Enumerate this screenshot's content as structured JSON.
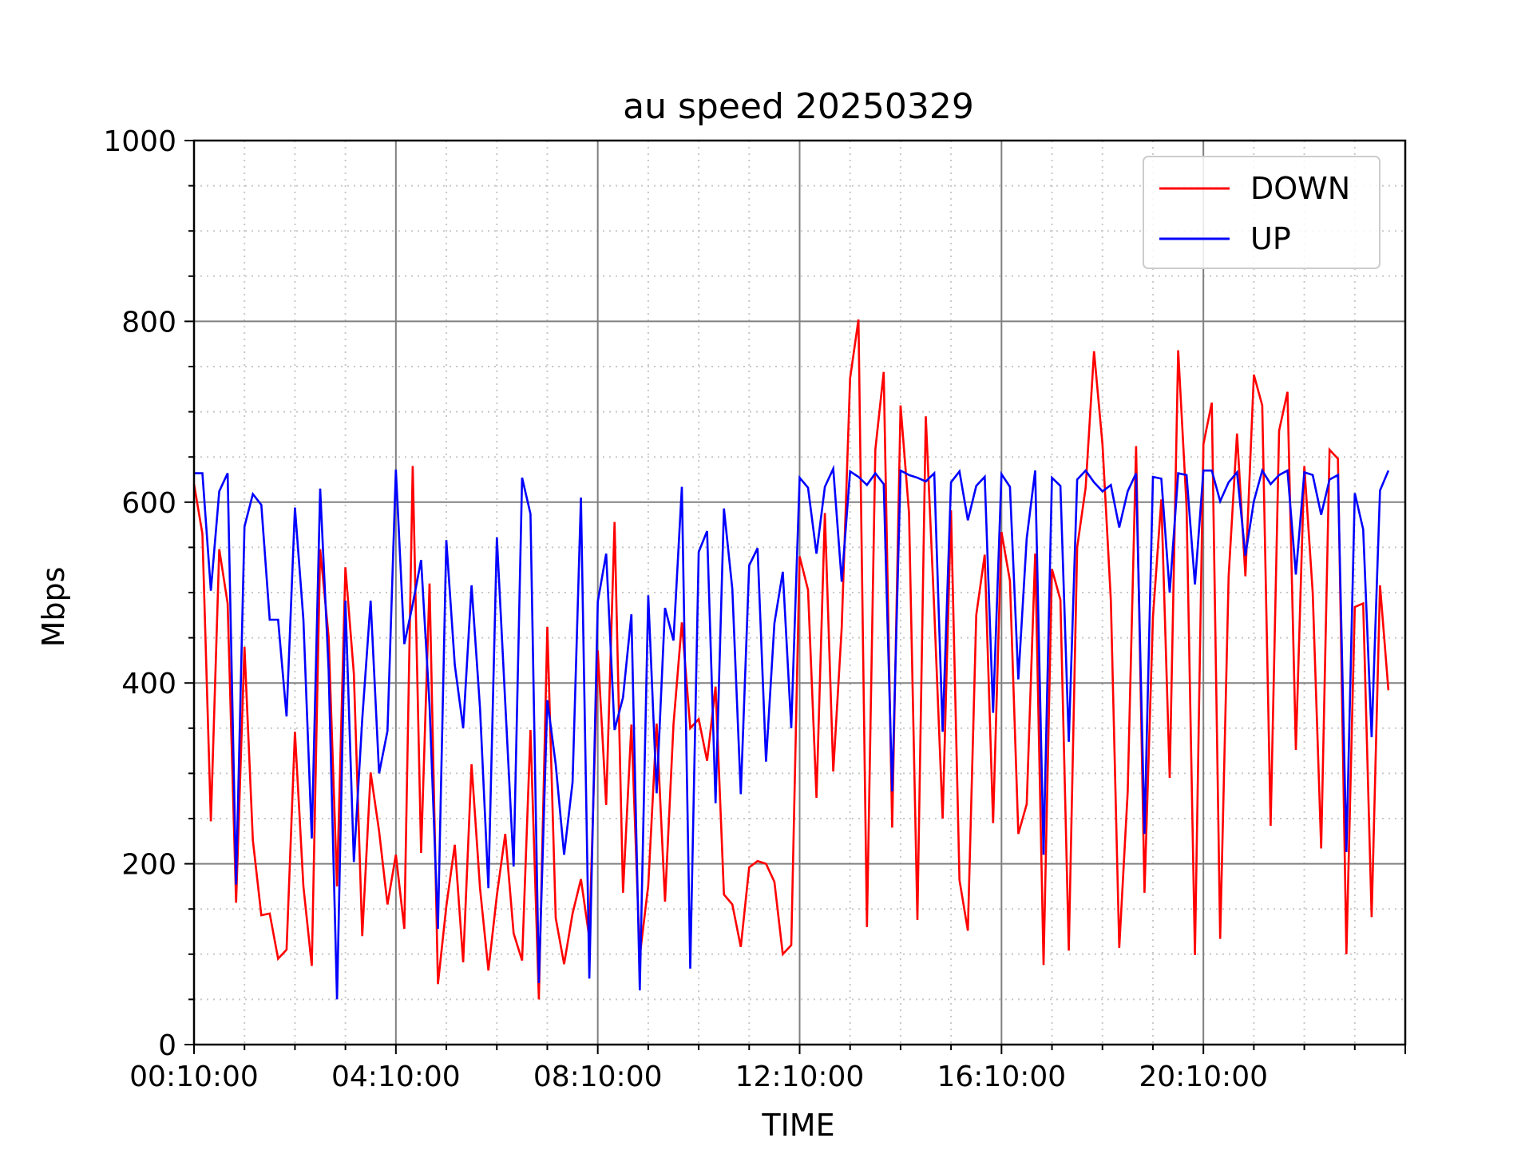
{
  "chart_data": {
    "type": "line",
    "title": "au speed 20250329",
    "xlabel": "TIME",
    "ylabel": "Mbps",
    "ylim": [
      0,
      1000
    ],
    "yticks": [
      0,
      200,
      400,
      600,
      800,
      1000
    ],
    "x_start": "00:10:00",
    "x_interval_minutes": 10,
    "x_tick_labels": [
      "00:10:00",
      "04:10:00",
      "08:10:00",
      "12:10:00",
      "16:10:00",
      "20:10:00"
    ],
    "grid": true,
    "legend_position": "top-right",
    "series": [
      {
        "name": "DOWN",
        "color": "#ff0000",
        "values": [
          620,
          565,
          247,
          548,
          488,
          157,
          440,
          226,
          143,
          145,
          95,
          105,
          346,
          175,
          87,
          548,
          451,
          175,
          528,
          410,
          120,
          301,
          236,
          155,
          210,
          128,
          640,
          212,
          510,
          67,
          153,
          221,
          91,
          310,
          173,
          82,
          165,
          233,
          123,
          93,
          348,
          50,
          462,
          140,
          89,
          145,
          183,
          118,
          436,
          265,
          578,
          168,
          354,
          98,
          176,
          355,
          158,
          354,
          467,
          350,
          360,
          314,
          396,
          166,
          155,
          108,
          196,
          203,
          200,
          180,
          100,
          110,
          540,
          503,
          273,
          588,
          302,
          461,
          737,
          802,
          130,
          658,
          744,
          240,
          707,
          588,
          138,
          695,
          481,
          250,
          591,
          182,
          126,
          475,
          542,
          245,
          567,
          513,
          233,
          266,
          543,
          88,
          526,
          492,
          104,
          550,
          616,
          767,
          664,
          491,
          107,
          280,
          662,
          168,
          473,
          603,
          295,
          768,
          595,
          99,
          664,
          710,
          117,
          518,
          676,
          518,
          741,
          707,
          242,
          679,
          722,
          326,
          640,
          500,
          217,
          658,
          648,
          100,
          484,
          488,
          141,
          508,
          392
        ],
        "stroke_width": 2.6
      },
      {
        "name": "UP",
        "color": "#0000ff",
        "values": [
          632,
          632,
          502,
          612,
          632,
          177,
          573,
          609,
          597,
          470,
          470,
          363,
          594,
          470,
          228,
          615,
          414,
          50,
          491,
          202,
          360,
          491,
          300,
          347,
          636,
          443,
          487,
          536,
          375,
          128,
          558,
          420,
          350,
          508,
          372,
          173,
          561,
          378,
          197,
          627,
          587,
          68,
          381,
          310,
          210,
          290,
          605,
          73,
          490,
          543,
          348,
          384,
          476,
          60,
          497,
          278,
          483,
          447,
          617,
          84,
          545,
          568,
          267,
          593,
          504,
          277,
          530,
          549,
          313,
          466,
          523,
          350,
          627,
          616,
          543,
          617,
          637,
          512,
          634,
          628,
          619,
          632,
          620,
          280,
          635,
          630,
          627,
          623,
          632,
          346,
          622,
          634,
          580,
          618,
          628,
          367,
          631,
          617,
          404,
          560,
          635,
          210,
          627,
          618,
          335,
          625,
          635,
          622,
          612,
          619,
          572,
          612,
          632,
          233,
          628,
          626,
          500,
          632,
          630,
          509,
          635,
          635,
          601,
          622,
          633,
          541,
          601,
          635,
          620,
          630,
          635,
          520,
          633,
          630,
          586,
          625,
          630,
          213,
          610,
          570,
          340,
          613,
          635
        ],
        "stroke_width": 2.6
      }
    ]
  }
}
